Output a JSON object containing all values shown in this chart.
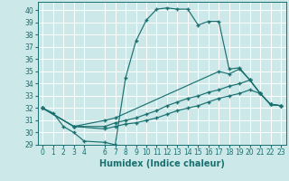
{
  "xlabel": "Humidex (Indice chaleur)",
  "ylabel": "",
  "xlim": [
    -0.5,
    23.5
  ],
  "ylim": [
    29,
    40.7
  ],
  "yticks": [
    29,
    30,
    31,
    32,
    33,
    34,
    35,
    36,
    37,
    38,
    39,
    40
  ],
  "xticks": [
    0,
    1,
    2,
    3,
    4,
    6,
    7,
    8,
    9,
    10,
    11,
    12,
    13,
    14,
    15,
    16,
    17,
    18,
    19,
    20,
    21,
    22,
    23
  ],
  "background_color": "#cce8e8",
  "grid_color": "#ffffff",
  "line_color": "#1a7070",
  "lines": [
    {
      "x": [
        0,
        1,
        2,
        3,
        4,
        6,
        7,
        8,
        9,
        10,
        11,
        12,
        13,
        14,
        15,
        16,
        17,
        18,
        19,
        20,
        21,
        22,
        23
      ],
      "y": [
        32,
        31.6,
        30.5,
        30.0,
        29.3,
        29.2,
        29.0,
        34.5,
        37.5,
        39.2,
        40.1,
        40.2,
        40.1,
        40.1,
        38.8,
        39.1,
        39.1,
        35.2,
        35.3,
        34.3,
        33.2,
        32.3,
        32.2
      ]
    },
    {
      "x": [
        0,
        3,
        6,
        7,
        17,
        18,
        19,
        20,
        21,
        22,
        23
      ],
      "y": [
        32,
        30.5,
        31.0,
        31.2,
        35.0,
        34.8,
        35.2,
        34.3,
        33.2,
        32.3,
        32.2
      ]
    },
    {
      "x": [
        0,
        3,
        6,
        7,
        8,
        9,
        10,
        11,
        12,
        13,
        14,
        15,
        16,
        17,
        18,
        19,
        20,
        21,
        22,
        23
      ],
      "y": [
        32,
        30.5,
        30.5,
        30.8,
        31.0,
        31.2,
        31.5,
        31.8,
        32.2,
        32.5,
        32.8,
        33.0,
        33.3,
        33.5,
        33.8,
        34.0,
        34.3,
        33.2,
        32.3,
        32.2
      ]
    },
    {
      "x": [
        0,
        3,
        6,
        7,
        8,
        9,
        10,
        11,
        12,
        13,
        14,
        15,
        16,
        17,
        18,
        19,
        20,
        21,
        22,
        23
      ],
      "y": [
        32,
        30.5,
        30.3,
        30.5,
        30.7,
        30.8,
        31.0,
        31.2,
        31.5,
        31.8,
        32.0,
        32.2,
        32.5,
        32.8,
        33.0,
        33.2,
        33.5,
        33.2,
        32.3,
        32.2
      ]
    }
  ],
  "tick_fontsize": 5.5,
  "label_fontsize": 7
}
